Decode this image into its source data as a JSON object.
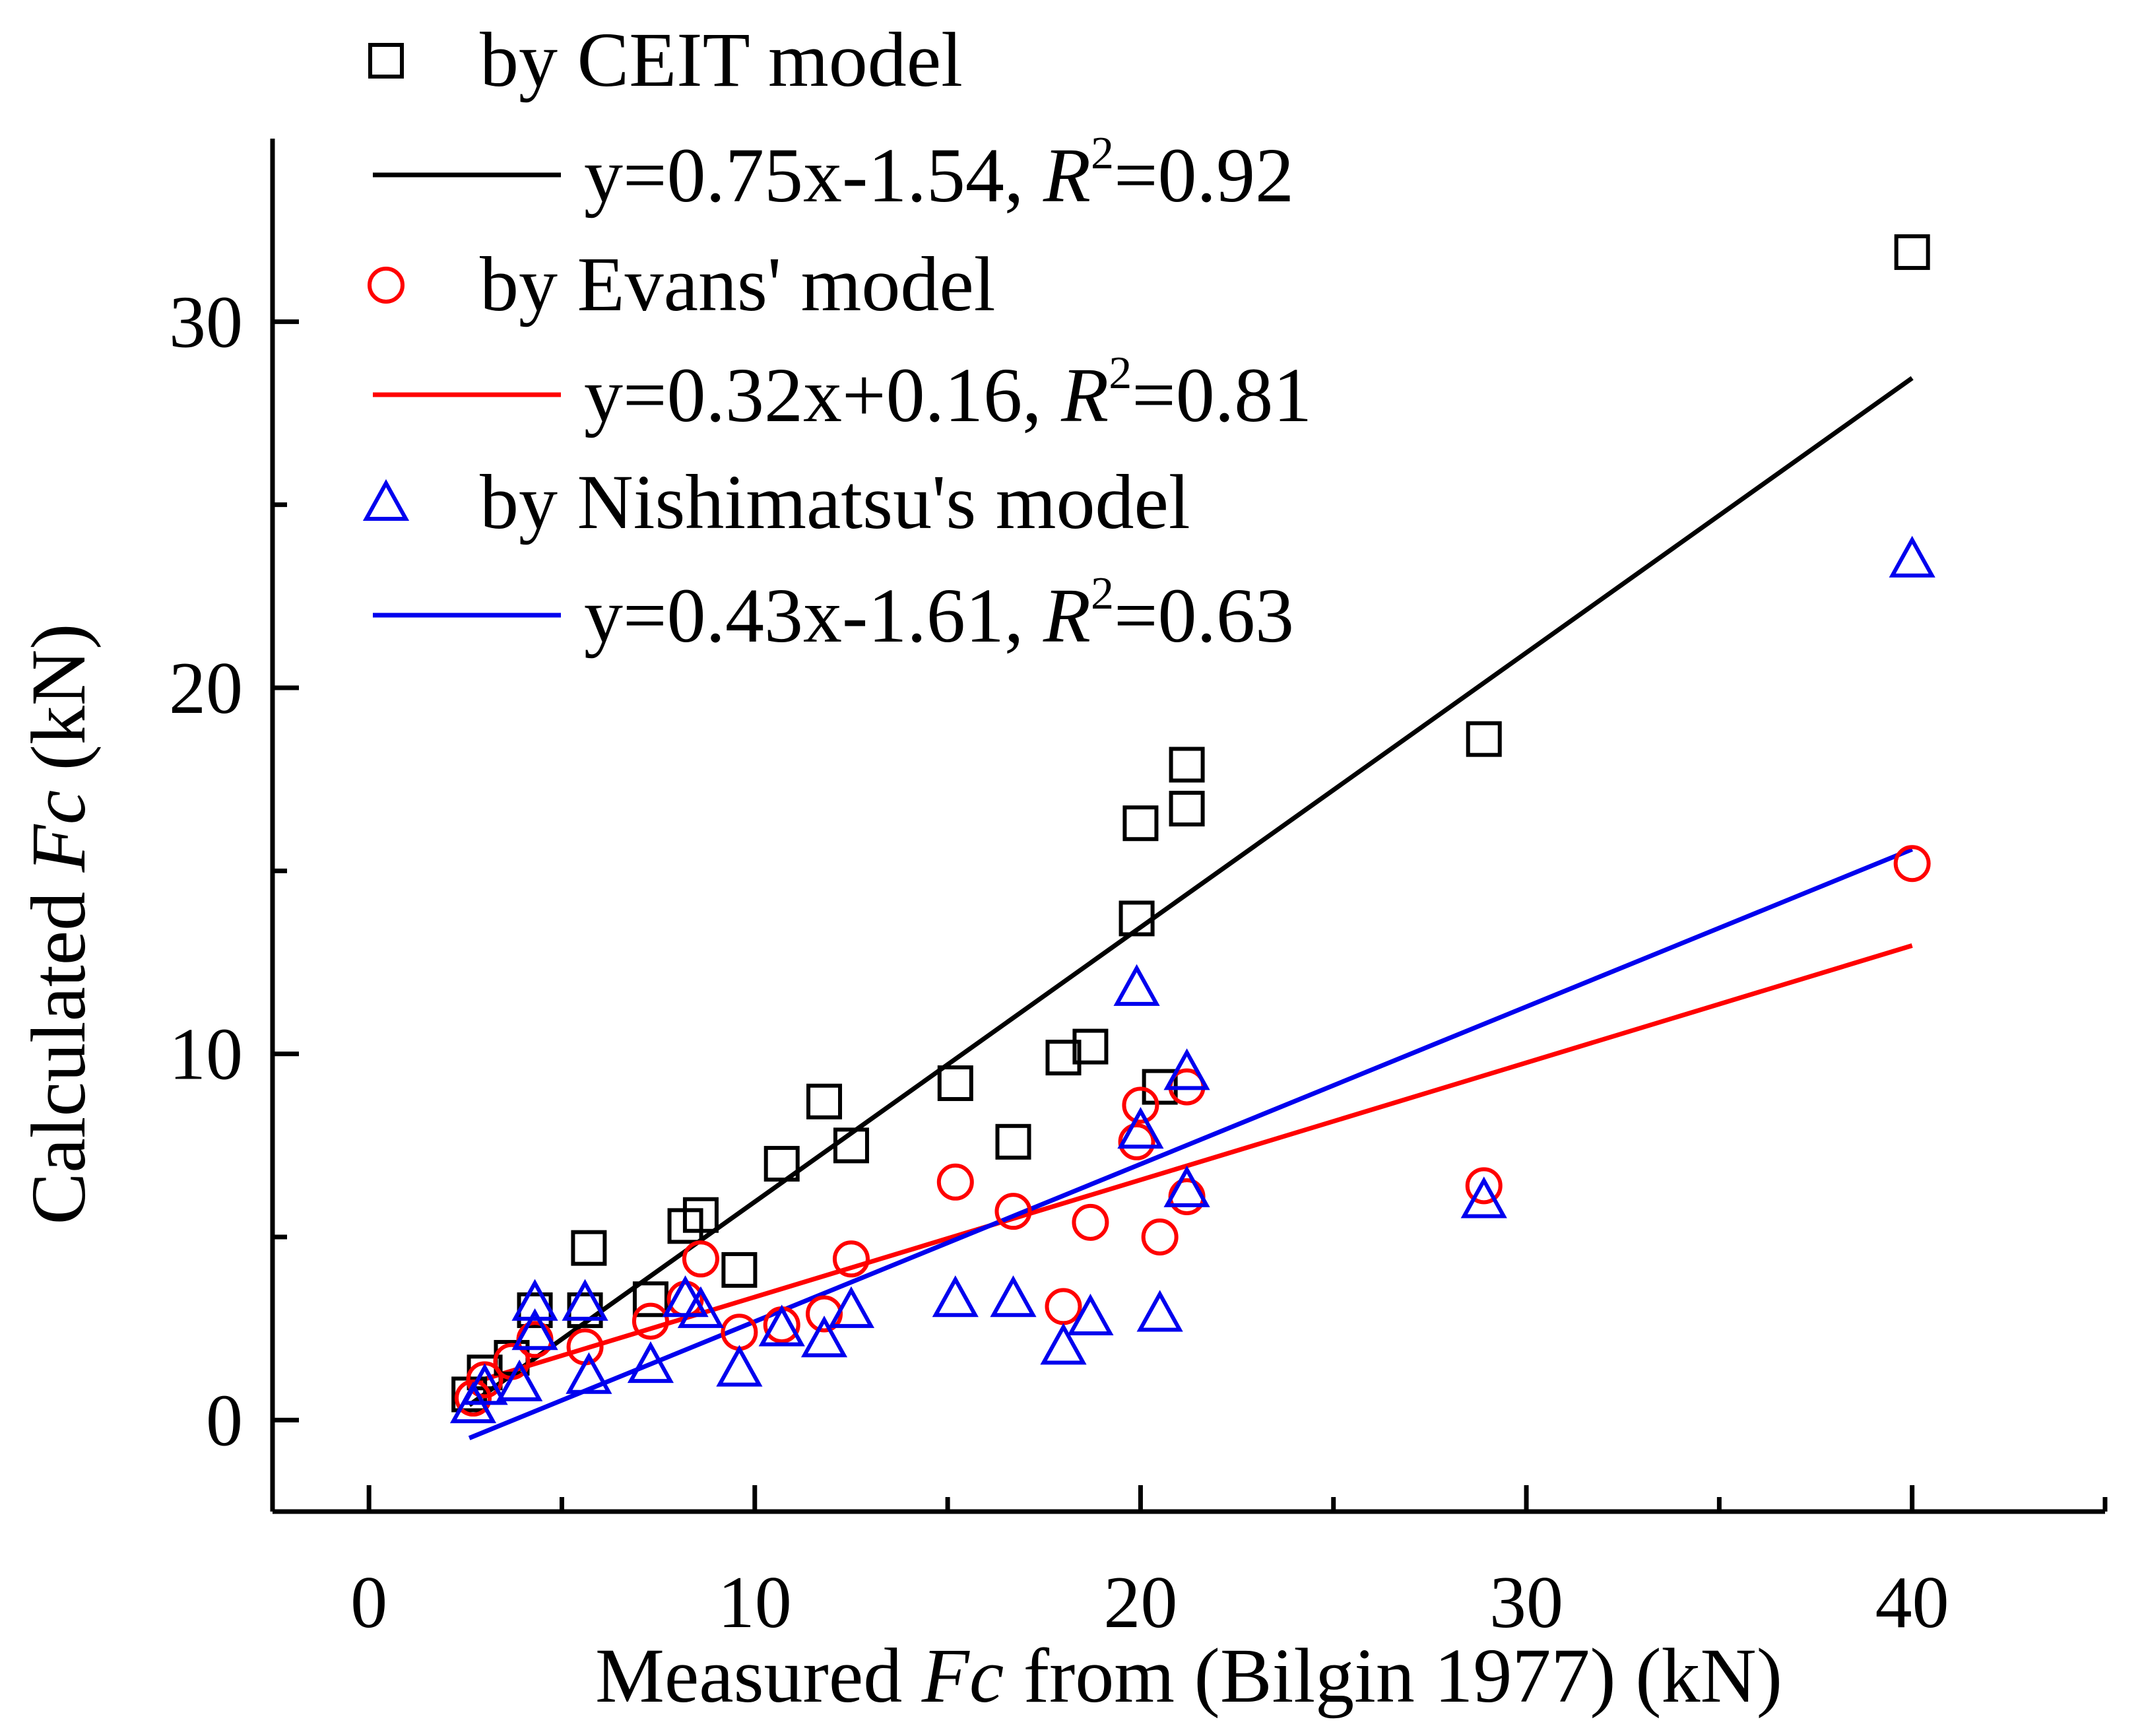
{
  "chart_data": {
    "type": "scatter",
    "xlabel": "Measured Fc from (Bilgin 1977) (kN)",
    "xlabel_parts": {
      "prefix": "Measured ",
      "italic": "Fc",
      "suffix": " from (Bilgin 1977) (kN)"
    },
    "ylabel": "Calculated Fc (kN)",
    "ylabel_parts": {
      "prefix": "Calculated ",
      "italic": "Fc",
      "suffix": " (kN)"
    },
    "xlim": [
      -2.5,
      45
    ],
    "ylim": [
      -2.5,
      35
    ],
    "x_ticks": [
      0,
      10,
      20,
      30,
      40
    ],
    "x_minor_ticks": [
      5,
      15,
      25,
      35,
      45
    ],
    "y_ticks": [
      0,
      10,
      20,
      30
    ],
    "y_minor_ticks": [
      5,
      15,
      25
    ],
    "legend_position": "top-left",
    "series": [
      {
        "name": "by CEIT model",
        "marker": "square",
        "color": "#000000",
        "x": [
          2.6,
          3.0,
          3.7,
          4.3,
          5.6,
          5.7,
          7.3,
          8.2,
          8.6,
          9.6,
          10.7,
          11.8,
          12.5,
          15.2,
          16.7,
          18.0,
          18.7,
          19.9,
          20.0,
          20.5,
          21.2,
          21.2,
          28.9,
          40.0
        ],
        "y": [
          0.7,
          1.3,
          1.7,
          3.0,
          3.0,
          4.7,
          3.3,
          5.3,
          5.6,
          4.1,
          7.0,
          8.7,
          7.5,
          9.2,
          7.6,
          9.9,
          10.2,
          13.7,
          16.3,
          9.1,
          16.7,
          17.9,
          18.6,
          31.9
        ]
      },
      {
        "name": "by Evans' model",
        "marker": "circle",
        "color": "#ff0000",
        "x": [
          2.7,
          3.0,
          3.7,
          4.3,
          5.6,
          7.3,
          8.2,
          8.6,
          9.6,
          10.7,
          11.8,
          12.5,
          15.2,
          16.7,
          18.0,
          18.7,
          19.9,
          20.0,
          20.5,
          21.2,
          21.2,
          28.9,
          40.0
        ],
        "y": [
          0.6,
          1.1,
          1.6,
          2.2,
          2.0,
          2.7,
          3.3,
          4.4,
          2.4,
          2.6,
          2.9,
          4.4,
          6.5,
          5.7,
          3.1,
          5.4,
          7.6,
          8.6,
          5.0,
          9.1,
          6.1,
          6.4,
          15.2
        ]
      },
      {
        "name": "by Nishimatsu's model",
        "marker": "triangle",
        "color": "#0000ee",
        "x": [
          2.7,
          3.0,
          3.9,
          4.3,
          4.3,
          5.6,
          5.7,
          7.3,
          8.2,
          8.6,
          9.6,
          10.7,
          11.8,
          12.5,
          15.2,
          16.7,
          18.0,
          18.7,
          19.9,
          20.0,
          20.5,
          21.2,
          21.2,
          28.9,
          40.0
        ],
        "y": [
          0.4,
          0.9,
          1.0,
          2.4,
          3.2,
          3.2,
          1.2,
          1.5,
          3.3,
          3.0,
          1.4,
          2.5,
          2.2,
          3.0,
          3.3,
          3.3,
          2.0,
          2.8,
          11.8,
          7.9,
          2.9,
          9.5,
          6.3,
          6.0,
          23.5
        ]
      }
    ],
    "fits": [
      {
        "name": "y=0.75x-1.54, R2=0.92",
        "text_prefix": "y=0.75x-1.54, ",
        "text_value": "=0.92",
        "color": "#000000",
        "slope": 0.75,
        "intercept": -1.54,
        "x_range": [
          2.6,
          40.0
        ]
      },
      {
        "name": "y=0.32x+0.16, R2=0.81",
        "text_prefix": "y=0.32x+0.16, ",
        "text_value": "=0.81",
        "color": "#ff0000",
        "slope": 0.32,
        "intercept": 0.16,
        "x_range": [
          2.6,
          40.0
        ]
      },
      {
        "name": "y=0.43x-1.61, R2=0.63",
        "text_prefix": "y=0.43x-1.61, ",
        "text_value": "=0.63",
        "color": "#0000ee",
        "slope": 0.43,
        "intercept": -1.61,
        "x_range": [
          2.6,
          40.0
        ]
      }
    ],
    "r_symbol": "R",
    "r_superscript": "2"
  }
}
